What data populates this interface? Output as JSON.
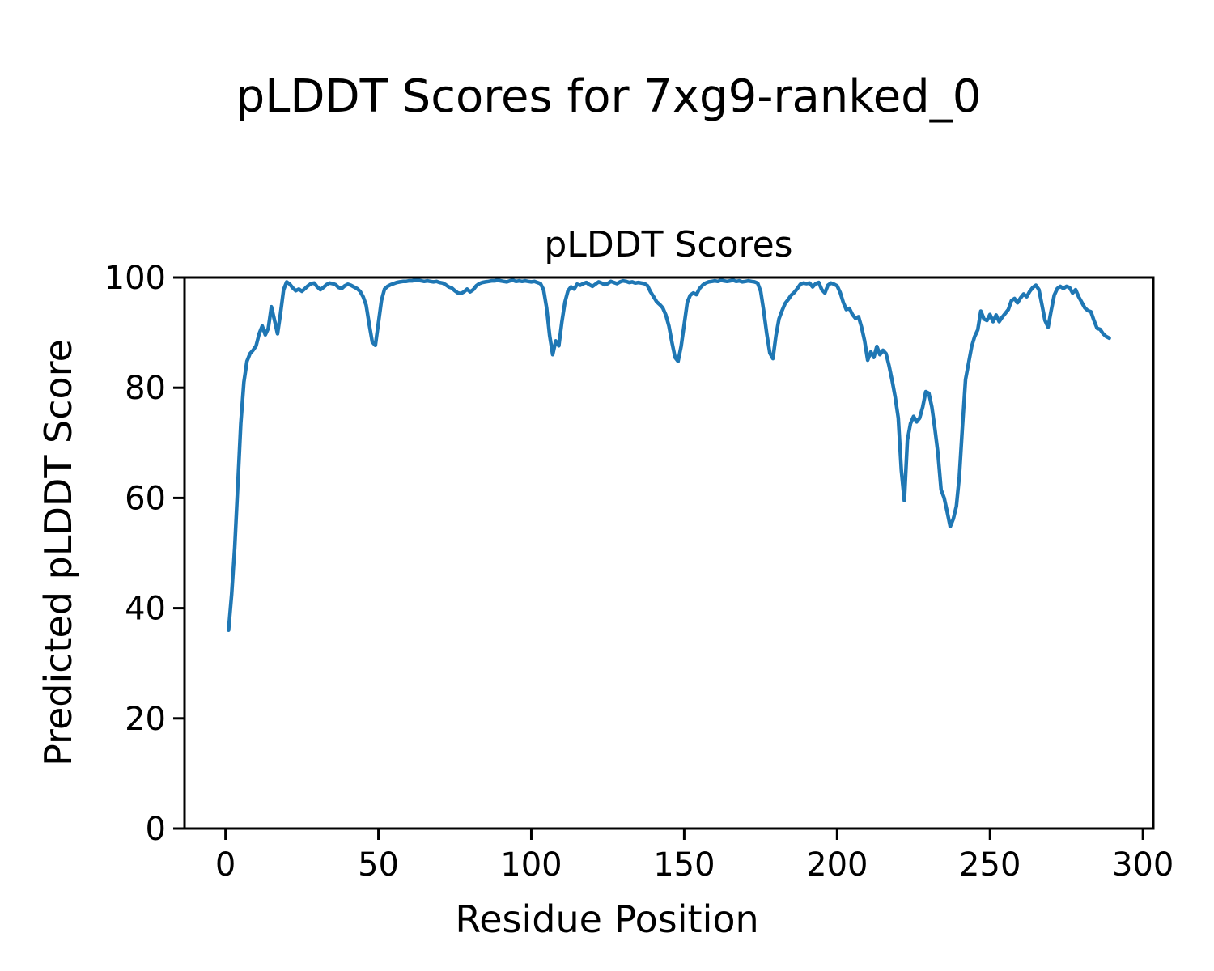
{
  "chart_data": {
    "type": "line",
    "suptitle": "pLDDT Scores for 7xg9-ranked_0",
    "title": "pLDDT Scores",
    "xlabel": "Residue Position",
    "ylabel": "Predicted pLDDT Score",
    "legend": null,
    "grid": false,
    "line_color": "#1f77b4",
    "line_width": 4.5,
    "xlim": [
      -13.4,
      303.4
    ],
    "ylim": [
      0,
      100
    ],
    "xticks": [
      0,
      50,
      100,
      150,
      200,
      250,
      300
    ],
    "yticks": [
      0,
      20,
      40,
      60,
      80,
      100
    ],
    "x_start": 1,
    "x_step": 1,
    "values": [
      36.0,
      42.5,
      51.0,
      62.0,
      73.5,
      81.0,
      84.8,
      86.2,
      86.8,
      87.6,
      89.8,
      91.2,
      89.6,
      90.8,
      94.7,
      92.3,
      89.8,
      93.5,
      97.8,
      99.2,
      98.8,
      98.1,
      97.6,
      97.9,
      97.5,
      98.0,
      98.5,
      98.9,
      99.0,
      98.3,
      97.8,
      98.2,
      98.7,
      99.0,
      98.9,
      98.7,
      98.2,
      98.0,
      98.5,
      98.8,
      98.6,
      98.3,
      98.0,
      97.5,
      96.5,
      95.0,
      91.5,
      88.3,
      87.7,
      91.8,
      95.8,
      97.9,
      98.4,
      98.7,
      98.9,
      99.1,
      99.2,
      99.3,
      99.3,
      99.4,
      99.4,
      99.5,
      99.5,
      99.4,
      99.3,
      99.4,
      99.3,
      99.2,
      99.3,
      99.1,
      99.0,
      98.7,
      98.3,
      98.1,
      97.6,
      97.2,
      97.1,
      97.4,
      97.9,
      97.4,
      97.8,
      98.5,
      98.9,
      99.1,
      99.2,
      99.3,
      99.4,
      99.4,
      99.5,
      99.4,
      99.3,
      99.2,
      99.4,
      99.5,
      99.3,
      99.4,
      99.3,
      99.4,
      99.3,
      99.2,
      99.3,
      99.1,
      98.9,
      97.8,
      94.5,
      89.5,
      86.0,
      88.5,
      87.6,
      92.0,
      95.5,
      97.6,
      98.3,
      97.9,
      98.8,
      98.6,
      98.9,
      99.1,
      98.7,
      98.4,
      98.8,
      99.2,
      99.0,
      98.7,
      98.9,
      99.3,
      99.1,
      98.9,
      99.2,
      99.4,
      99.3,
      99.1,
      99.2,
      99.0,
      99.1,
      99.0,
      98.9,
      98.5,
      97.4,
      96.5,
      95.6,
      95.1,
      94.5,
      93.2,
      91.2,
      88.2,
      85.5,
      84.8,
      87.5,
      91.5,
      95.5,
      96.8,
      97.2,
      96.9,
      98.0,
      98.6,
      99.0,
      99.2,
      99.3,
      99.4,
      99.3,
      99.5,
      99.4,
      99.3,
      99.4,
      99.5,
      99.3,
      99.4,
      99.2,
      99.3,
      99.4,
      99.3,
      99.2,
      99.0,
      97.5,
      94.0,
      89.8,
      86.3,
      85.3,
      89.4,
      92.5,
      94.0,
      95.3,
      96.0,
      96.8,
      97.3,
      98.0,
      98.8,
      99.0,
      98.9,
      99.0,
      98.3,
      98.9,
      99.1,
      97.8,
      97.2,
      98.6,
      99.0,
      98.8,
      98.5,
      97.3,
      95.5,
      94.2,
      94.4,
      93.3,
      92.6,
      92.9,
      91.0,
      88.5,
      85.0,
      86.5,
      85.5,
      87.5,
      86.0,
      86.8,
      86.2,
      84.0,
      81.3,
      78.3,
      74.5,
      65.0,
      59.5,
      70.5,
      73.5,
      74.8,
      73.8,
      74.5,
      76.5,
      79.3,
      79.0,
      76.5,
      72.5,
      68.0,
      61.5,
      60.0,
      57.5,
      54.8,
      56.2,
      58.5,
      64.0,
      73.0,
      81.5,
      84.5,
      87.5,
      89.3,
      90.5,
      93.9,
      92.5,
      92.2,
      93.3,
      92.0,
      93.2,
      92.0,
      92.8,
      93.5,
      94.2,
      95.8,
      96.2,
      95.4,
      96.3,
      97.0,
      96.5,
      97.5,
      98.2,
      98.6,
      97.8,
      95.0,
      92.2,
      91.0,
      94.0,
      96.8,
      98.0,
      98.4,
      98.0,
      98.4,
      98.2,
      97.2,
      97.8,
      96.5,
      95.5,
      94.5,
      94.0,
      93.8,
      92.2,
      90.8,
      90.6,
      89.8,
      89.3,
      89.0
    ]
  }
}
